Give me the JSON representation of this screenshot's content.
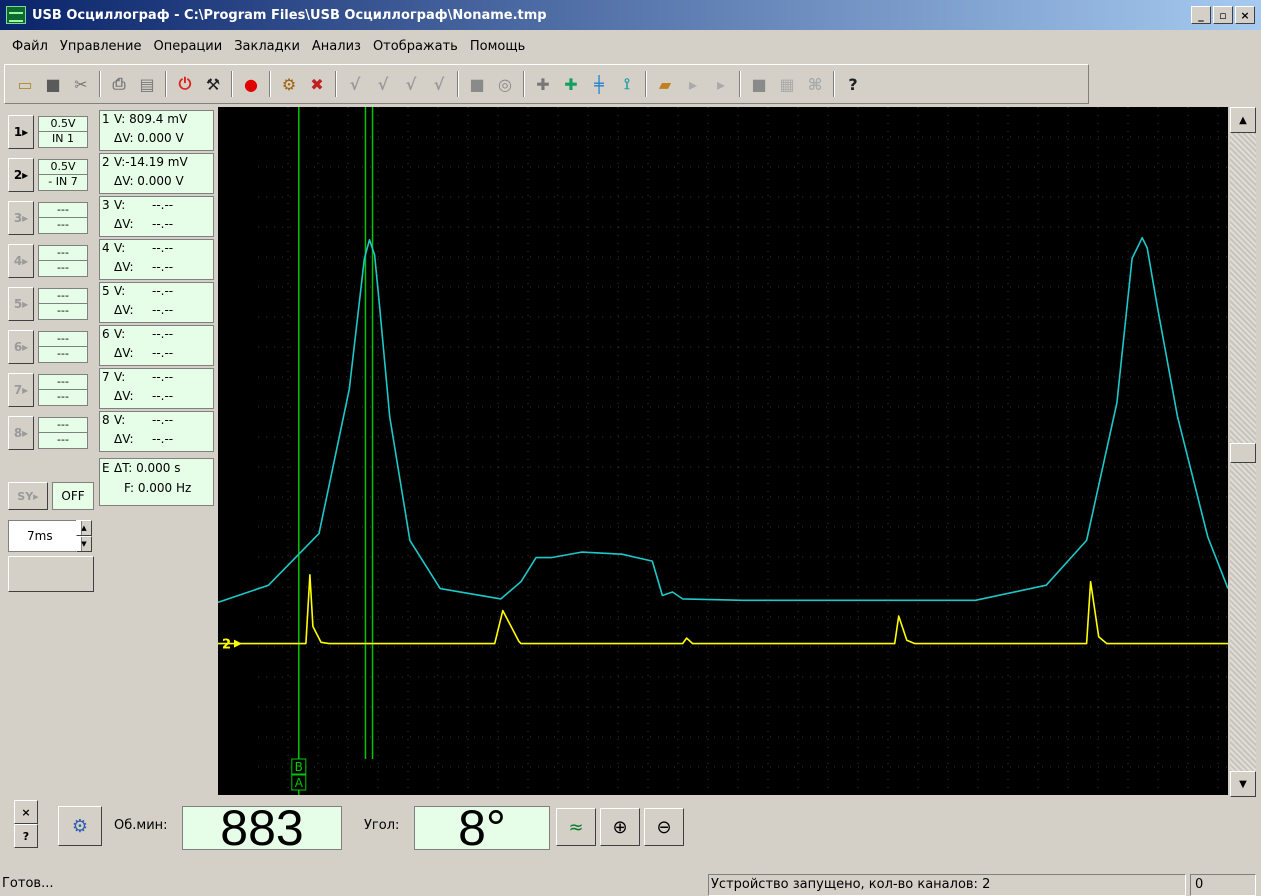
{
  "window": {
    "title": "USB Осциллограф - C:\\Program Files\\USB Осциллограф\\Noname.tmp"
  },
  "menu": [
    "Файл",
    "Управление",
    "Операции",
    "Закладки",
    "Анализ",
    "Отображать",
    "Помощь"
  ],
  "toolbar": {
    "icons": [
      "open-folder",
      "save-disk",
      "cut",
      "print",
      "print-preview",
      "power",
      "hammer",
      "record",
      "tool-1",
      "tool-2",
      "check-1",
      "check-2",
      "check-3",
      "check-4",
      "stop",
      "magnify-grid",
      "cursor-1",
      "cursor-2",
      "cursor-3",
      "cursor-4",
      "open-data",
      "speed-1",
      "speed-2",
      "stop-2",
      "grid",
      "crosshair",
      "help"
    ]
  },
  "channels": [
    {
      "button": "1▸",
      "range": "0.5V",
      "input": "IN 1",
      "enabled": true,
      "v": "V: 809.4 mV",
      "dv": "ΔV: 0.000 V"
    },
    {
      "button": "2▸",
      "range": "0.5V",
      "input": "- IN 7",
      "enabled": true,
      "v": "V:-14.19 mV",
      "dv": "ΔV: 0.000 V"
    },
    {
      "button": "3▸",
      "range": "---",
      "input": "---",
      "enabled": false,
      "v": "V:",
      "vval": "--.--",
      "dv": "ΔV:",
      "dvval": "--.--"
    },
    {
      "button": "4▸",
      "range": "---",
      "input": "---",
      "enabled": false,
      "v": "V:",
      "vval": "--.--",
      "dv": "ΔV:",
      "dvval": "--.--"
    },
    {
      "button": "5▸",
      "range": "---",
      "input": "---",
      "enabled": false,
      "v": "V:",
      "vval": "--.--",
      "dv": "ΔV:",
      "dvval": "--.--"
    },
    {
      "button": "6▸",
      "range": "---",
      "input": "---",
      "enabled": false,
      "v": "V:",
      "vval": "--.--",
      "dv": "ΔV:",
      "dvval": "--.--"
    },
    {
      "button": "7▸",
      "range": "---",
      "input": "---",
      "enabled": false,
      "v": "V:",
      "vval": "--.--",
      "dv": "ΔV:",
      "dvval": "--.--"
    },
    {
      "button": "8▸",
      "range": "---",
      "input": "---",
      "enabled": false,
      "v": "V:",
      "vval": "--.--",
      "dv": "ΔV:",
      "dvval": "--.--"
    }
  ],
  "extra_measure": {
    "label": "E",
    "dt": "ΔT:  0.000 s",
    "f": "F: 0.000 Hz"
  },
  "sync": {
    "button": "SY▸",
    "state": "OFF"
  },
  "timebase": {
    "value": "7ms"
  },
  "scope": {
    "grid": true,
    "bg_color": "#000000",
    "ch1_color": "#1fc8c8",
    "ch2_color": "#ffff00",
    "cursor_color": "#00c800",
    "ch2_marker": "2",
    "cursor_labels": [
      "B",
      "A"
    ]
  },
  "chart_data": {
    "type": "line",
    "title": "",
    "xlabel": "",
    "ylabel": "",
    "grid": true,
    "series": [
      {
        "x": [
          0,
          5,
          10,
          13,
          14.5,
          15,
          15.5,
          16,
          17,
          19,
          22,
          28,
          30,
          31.5,
          33,
          36,
          40,
          43,
          44,
          45,
          46,
          52,
          60,
          75,
          82,
          86,
          89,
          90.5,
          91.5,
          92,
          93,
          95,
          98,
          100
        ],
        "y": [
          -2.7,
          -2.45,
          -1.7,
          0.4,
          2.3,
          2.57,
          2.35,
          1.6,
          0.0,
          -1.8,
          -2.5,
          -2.65,
          -2.4,
          -2.05,
          -2.05,
          -1.97,
          -2.0,
          -2.1,
          -2.6,
          -2.55,
          -2.65,
          -2.67,
          -2.67,
          -2.67,
          -2.45,
          -1.8,
          0.2,
          2.3,
          2.6,
          2.45,
          1.6,
          0.0,
          -1.75,
          -2.5
        ]
      },
      {
        "x": [
          0,
          8.7,
          9.1,
          9.4,
          10.2,
          11,
          27.4,
          28.2,
          29.8,
          30,
          46,
          46.4,
          47,
          67,
          67.4,
          68.2,
          69,
          86,
          86.4,
          87.2,
          88,
          100
        ],
        "y": [
          -3.3,
          -3.3,
          -2.3,
          -3.05,
          -3.28,
          -3.3,
          -3.3,
          -2.82,
          -3.27,
          -3.3,
          -3.3,
          -3.22,
          -3.3,
          -3.3,
          -2.9,
          -3.25,
          -3.3,
          -3.3,
          -2.4,
          -3.2,
          -3.3,
          -3.3
        ]
      }
    ],
    "xlim": [
      0,
      100
    ],
    "ylim": [
      -5.5,
      4.5
    ],
    "cursors": {
      "B": 8.0,
      "A1": 14.6,
      "A2": 15.3
    }
  },
  "bottom": {
    "rpm_label": "Об.мин:",
    "rpm_value": "883",
    "angle_label": "Угол:",
    "angle_value": "8°",
    "small_close": "×",
    "small_help": "?"
  },
  "status": {
    "left": "Готов...",
    "middle": "Устройство запущено, кол-во каналов: 2",
    "right": "0"
  }
}
